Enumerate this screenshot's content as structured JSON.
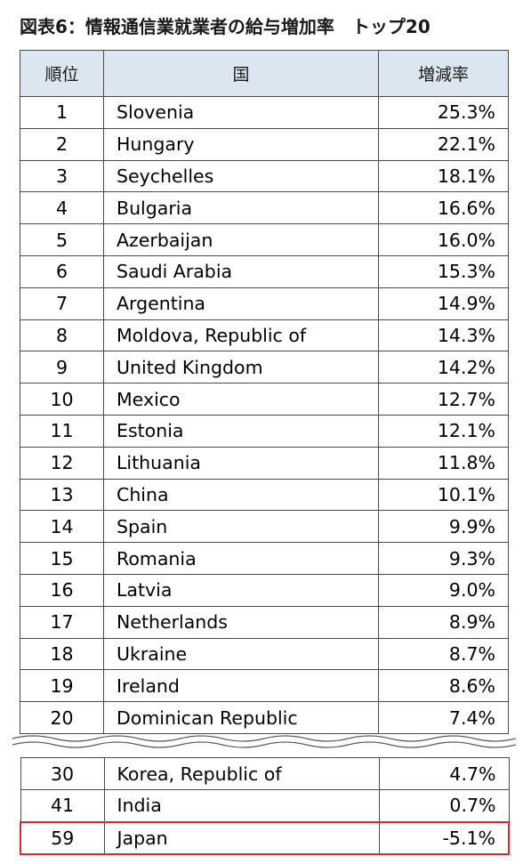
{
  "title": "図表6：情報通信業就業者の給与増加率　トップ20",
  "headers": {
    "rank": "順位",
    "country": "国",
    "rate": "増減率"
  },
  "top_rows": [
    {
      "rank": "1",
      "country": "Slovenia",
      "rate": "25.3%"
    },
    {
      "rank": "2",
      "country": "Hungary",
      "rate": "22.1%"
    },
    {
      "rank": "3",
      "country": "Seychelles",
      "rate": "18.1%"
    },
    {
      "rank": "4",
      "country": "Bulgaria",
      "rate": "16.6%"
    },
    {
      "rank": "5",
      "country": "Azerbaijan",
      "rate": "16.0%"
    },
    {
      "rank": "6",
      "country": "Saudi Arabia",
      "rate": "15.3%"
    },
    {
      "rank": "7",
      "country": "Argentina",
      "rate": "14.9%"
    },
    {
      "rank": "8",
      "country": "Moldova, Republic of",
      "rate": "14.3%"
    },
    {
      "rank": "9",
      "country": "United Kingdom",
      "rate": "14.2%"
    },
    {
      "rank": "10",
      "country": "Mexico",
      "rate": "12.7%"
    },
    {
      "rank": "11",
      "country": "Estonia",
      "rate": "12.1%"
    },
    {
      "rank": "12",
      "country": "Lithuania",
      "rate": "11.8%"
    },
    {
      "rank": "13",
      "country": "China",
      "rate": "10.1%"
    },
    {
      "rank": "14",
      "country": "Spain",
      "rate": "9.9%"
    },
    {
      "rank": "15",
      "country": "Romania",
      "rate": "9.3%"
    },
    {
      "rank": "16",
      "country": "Latvia",
      "rate": "9.0%"
    },
    {
      "rank": "17",
      "country": "Netherlands",
      "rate": "8.9%"
    },
    {
      "rank": "18",
      "country": "Ukraine",
      "rate": "8.7%"
    },
    {
      "rank": "19",
      "country": "Ireland",
      "rate": "8.6%"
    },
    {
      "rank": "20",
      "country": "Dominican Republic",
      "rate": "7.4%"
    }
  ],
  "bottom_rows": [
    {
      "rank": "30",
      "country": "Korea, Republic of",
      "rate": "4.7%",
      "highlight": false
    },
    {
      "rank": "41",
      "country": "India",
      "rate": "0.7%",
      "highlight": false
    },
    {
      "rank": "59",
      "country": "Japan",
      "rate": "-5.1%",
      "highlight": true
    }
  ],
  "colors": {
    "header_bg": "#dce6f1",
    "highlight_border": "#d9282f",
    "grid": "#4a4a4a"
  }
}
